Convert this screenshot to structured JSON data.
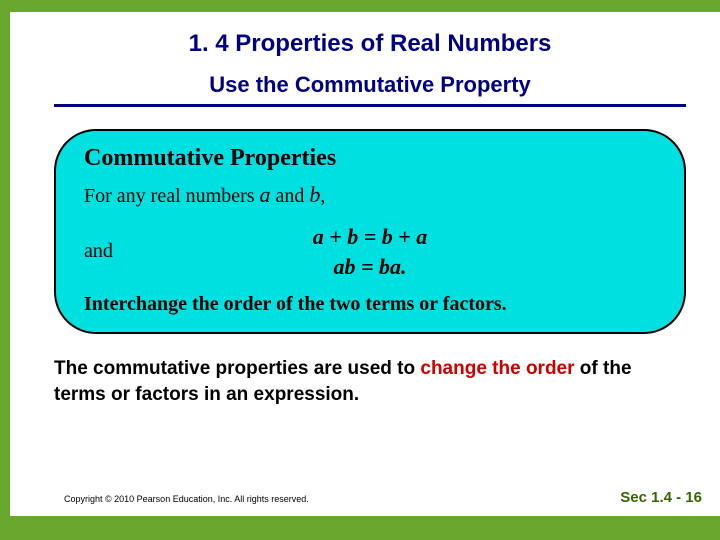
{
  "colors": {
    "accent_green": "#6aa72e",
    "title_blue": "#000080",
    "box_bg": "#00e0e0",
    "highlight_red": "#cc0000",
    "pagenum_green": "#336600"
  },
  "title": "1. 4 Properties of Real Numbers",
  "subtitle": "Use the Commutative Property",
  "box": {
    "heading": "Commutative Properties",
    "intro_prefix": "For any real numbers ",
    "var_a": "a",
    "intro_mid": " and ",
    "var_b": "b",
    "intro_suffix": ",",
    "and_label": "and",
    "eq1": "a + b = b + a",
    "eq2": "ab = ba.",
    "footer": "Interchange the order of the two terms or factors."
  },
  "summary": {
    "p1": "The commutative properties are used to ",
    "red1": "change the order",
    "p2": " of the terms or factors in an expression."
  },
  "copyright": "Copyright © 2010 Pearson Education, Inc.  All rights reserved.",
  "pagenum": "Sec 1.4 - 16"
}
